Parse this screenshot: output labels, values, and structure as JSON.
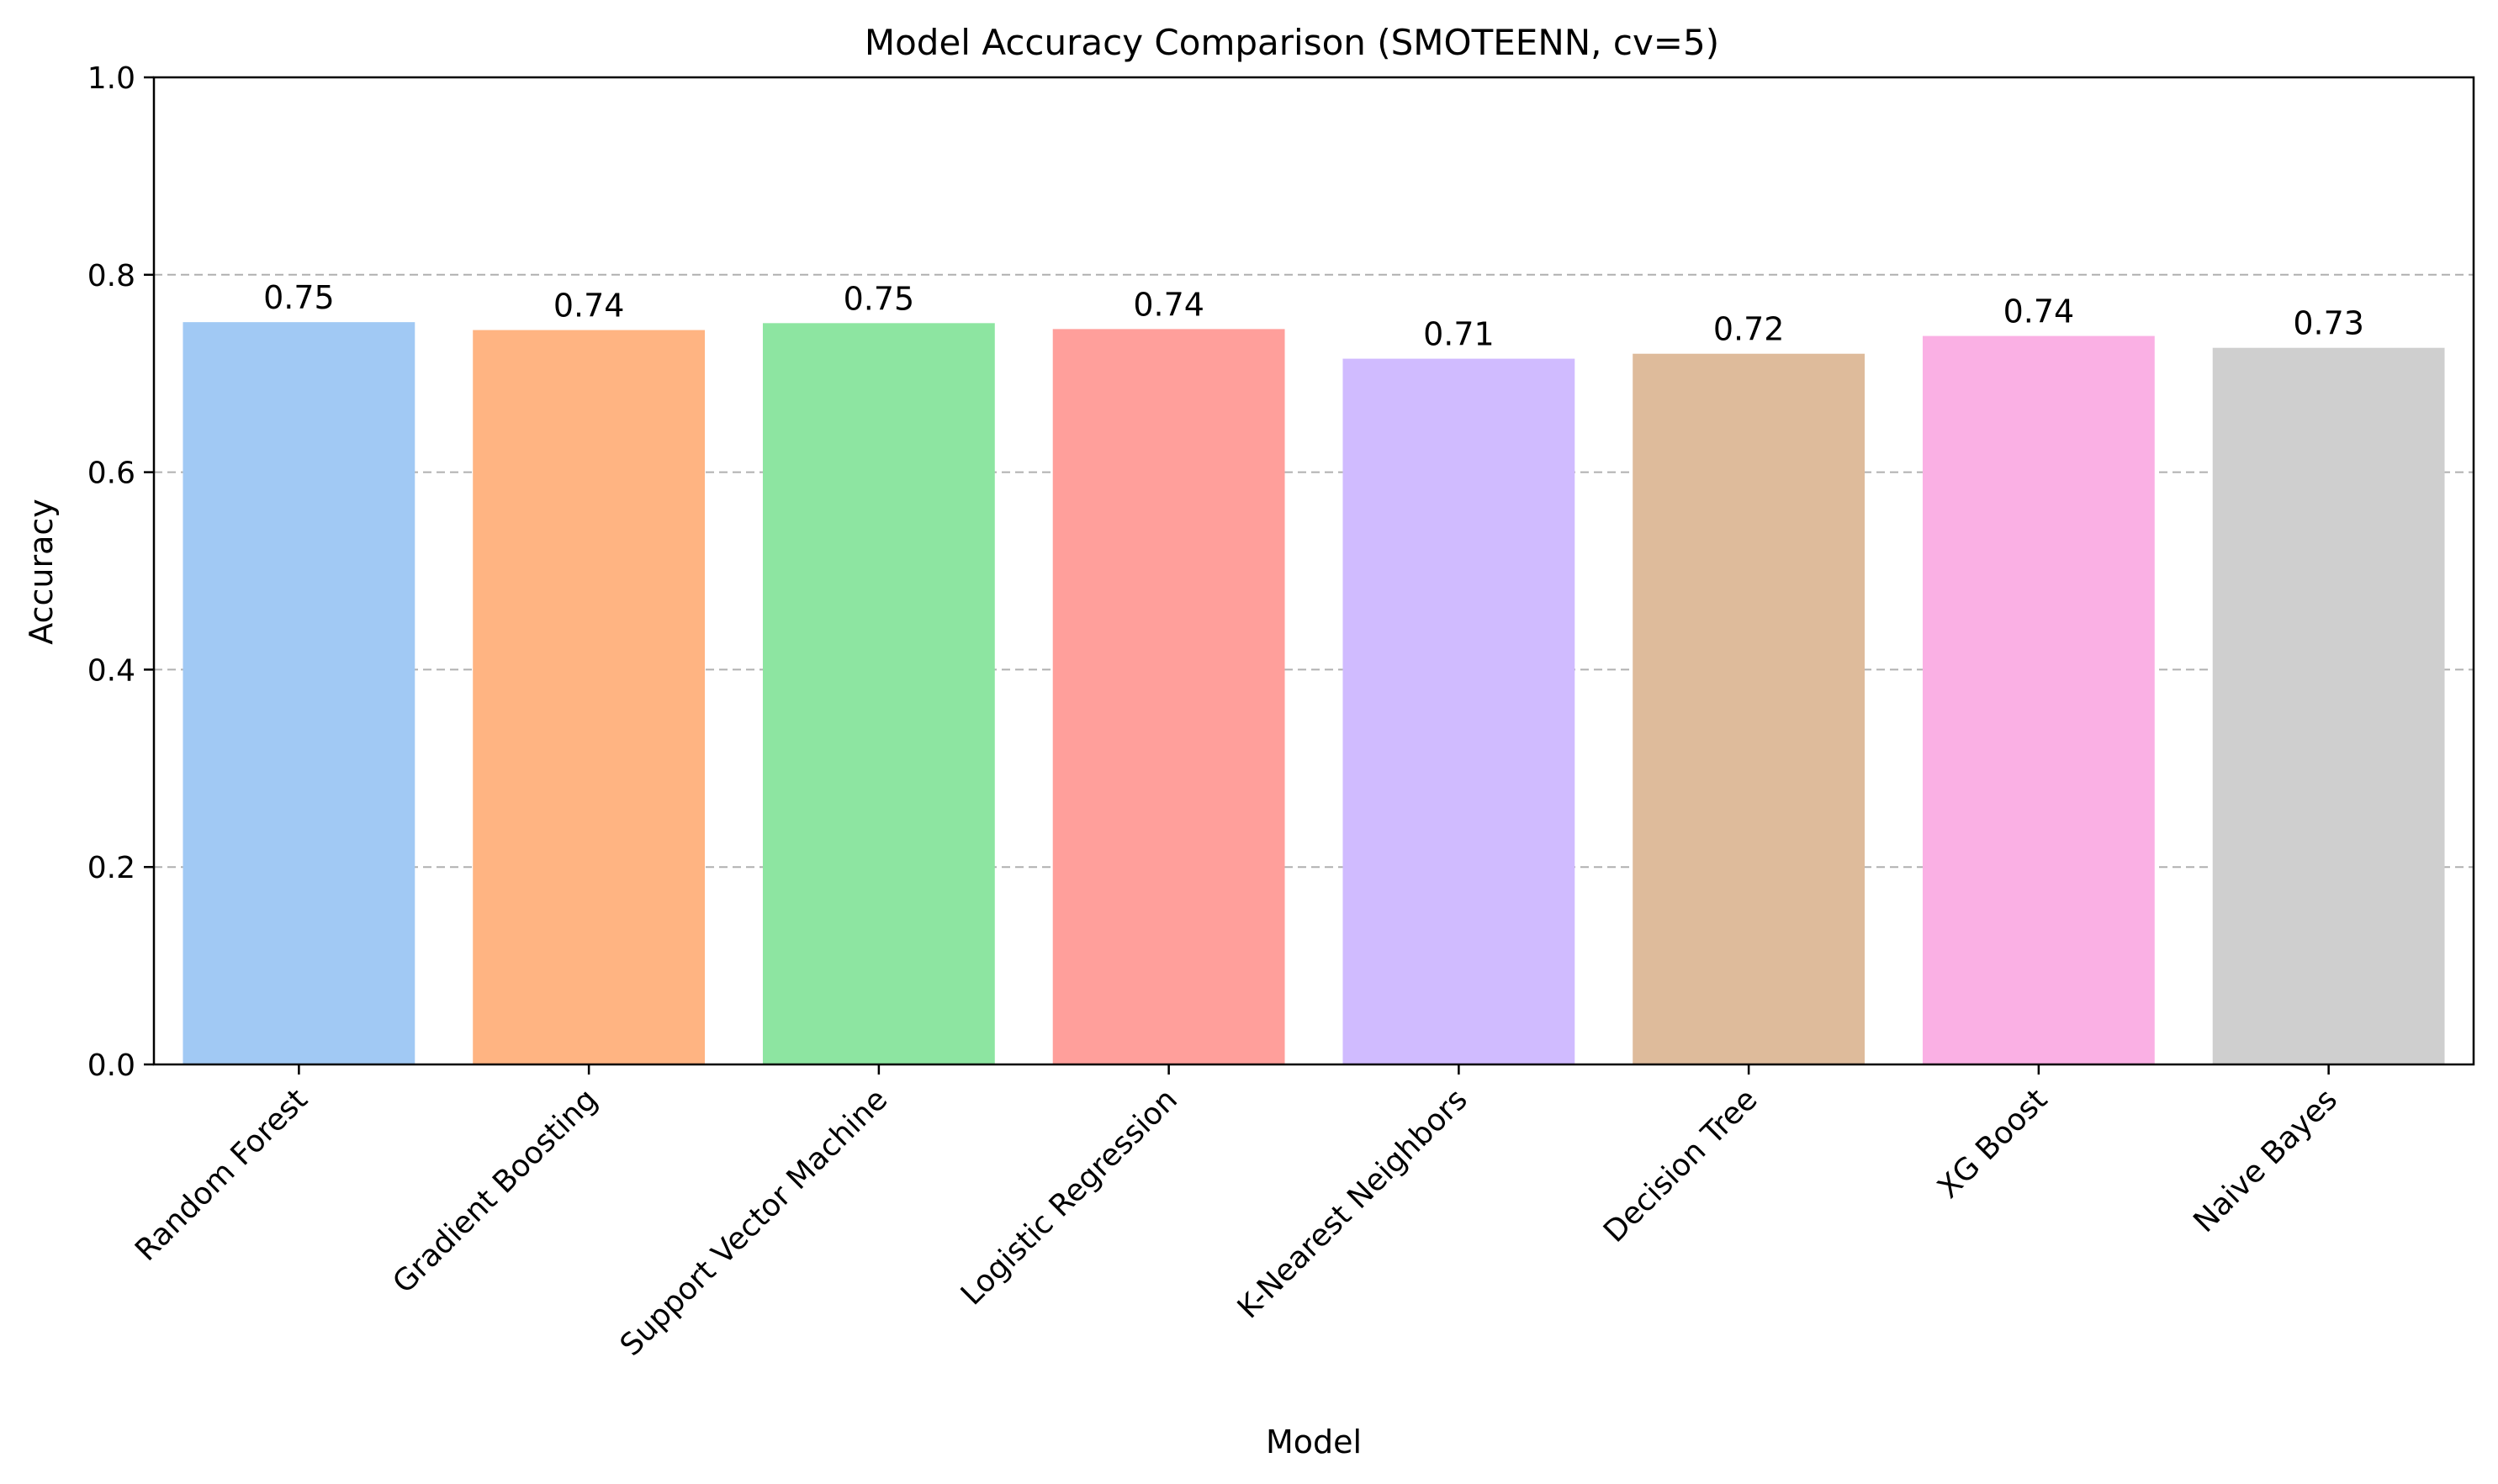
{
  "chart_data": {
    "type": "bar",
    "title": "Model Accuracy Comparison (SMOTEENN, cv=5)",
    "xlabel": "Model",
    "ylabel": "Accuracy",
    "ylim": [
      0,
      1.0
    ],
    "yticks": [
      "0.0",
      "0.2",
      "0.4",
      "0.6",
      "0.8",
      "1.0"
    ],
    "grid": "y-dashed",
    "categories": [
      "Random Forest",
      "Gradient Boosting",
      "Support Vector Machine",
      "Logistic Regression",
      "K-Nearest Neighbors",
      "Decision Tree",
      "XG Boost",
      "Naive Bayes"
    ],
    "values": [
      0.752,
      0.744,
      0.751,
      0.745,
      0.715,
      0.72,
      0.738,
      0.726
    ],
    "data_labels": [
      "0.75",
      "0.74",
      "0.75",
      "0.74",
      "0.71",
      "0.72",
      "0.74",
      "0.73"
    ],
    "colors": [
      "#a1c9f4",
      "#ffb482",
      "#8de5a1",
      "#ff9f9b",
      "#d0bbff",
      "#debb9b",
      "#fab0e4",
      "#cfcfcf"
    ]
  }
}
